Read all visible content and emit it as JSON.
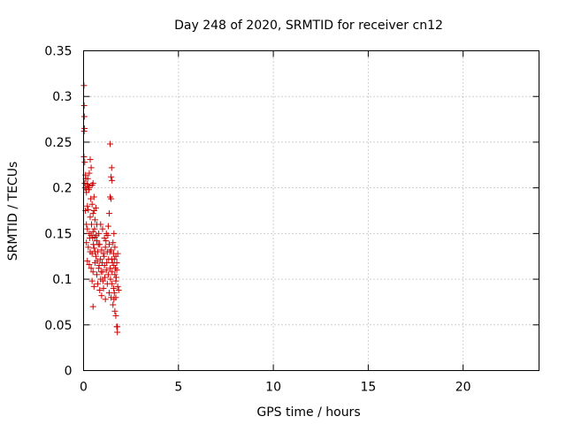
{
  "chart_data": {
    "type": "scatter",
    "title": "Day 248 of 2020, SRMTID for receiver cn12",
    "xlabel": "GPS time / hours",
    "ylabel": "SRMTID / TECUs",
    "xlim": [
      0,
      24
    ],
    "ylim": [
      0,
      0.35
    ],
    "xticks": [
      0,
      5,
      10,
      15,
      20
    ],
    "xtick_labels": [
      "0",
      "5",
      "10",
      "15",
      "20"
    ],
    "yticks": [
      0,
      0.05,
      0.1,
      0.15,
      0.2,
      0.25,
      0.3,
      0.35
    ],
    "ytick_labels": [
      "0",
      "0.05",
      "0.1",
      "0.15",
      "0.2",
      "0.25",
      "0.3",
      "0.35"
    ],
    "grid": true,
    "marker": "plus",
    "series": [
      {
        "name": "SRMTID",
        "color": "#cc0000",
        "points": [
          [
            0.02,
            0.312
          ],
          [
            0.03,
            0.29
          ],
          [
            0.04,
            0.278
          ],
          [
            0.05,
            0.265
          ],
          [
            0.03,
            0.262
          ],
          [
            0.02,
            0.234
          ],
          [
            0.06,
            0.228
          ],
          [
            0.1,
            0.214
          ],
          [
            0.12,
            0.21
          ],
          [
            0.06,
            0.205
          ],
          [
            0.08,
            0.2
          ],
          [
            0.15,
            0.198
          ],
          [
            0.2,
            0.204
          ],
          [
            0.25,
            0.202
          ],
          [
            0.3,
            0.2
          ],
          [
            0.35,
            0.231
          ],
          [
            0.4,
            0.222
          ],
          [
            0.3,
            0.216
          ],
          [
            0.45,
            0.203
          ],
          [
            0.5,
            0.205
          ],
          [
            0.55,
            0.19
          ],
          [
            0.2,
            0.18
          ],
          [
            0.25,
            0.176
          ],
          [
            0.35,
            0.168
          ],
          [
            0.5,
            0.172
          ],
          [
            0.6,
            0.165
          ],
          [
            0.65,
            0.178
          ],
          [
            0.7,
            0.16
          ],
          [
            0.55,
            0.175
          ],
          [
            0.45,
            0.182
          ],
          [
            0.15,
            0.16
          ],
          [
            0.2,
            0.155
          ],
          [
            0.3,
            0.15
          ],
          [
            0.4,
            0.148
          ],
          [
            0.5,
            0.152
          ],
          [
            0.6,
            0.146
          ],
          [
            0.7,
            0.142
          ],
          [
            0.8,
            0.15
          ],
          [
            0.9,
            0.16
          ],
          [
            1.0,
            0.155
          ],
          [
            1.1,
            0.145
          ],
          [
            1.2,
            0.15
          ],
          [
            1.3,
            0.158
          ],
          [
            1.35,
            0.172
          ],
          [
            1.4,
            0.19
          ],
          [
            1.45,
            0.212
          ],
          [
            1.5,
            0.208
          ],
          [
            1.48,
            0.222
          ],
          [
            1.4,
            0.248
          ],
          [
            1.45,
            0.188
          ],
          [
            0.15,
            0.14
          ],
          [
            0.25,
            0.135
          ],
          [
            0.35,
            0.13
          ],
          [
            0.45,
            0.128
          ],
          [
            0.55,
            0.134
          ],
          [
            0.65,
            0.125
          ],
          [
            0.75,
            0.13
          ],
          [
            0.85,
            0.138
          ],
          [
            0.95,
            0.132
          ],
          [
            1.05,
            0.128
          ],
          [
            1.15,
            0.135
          ],
          [
            1.25,
            0.13
          ],
          [
            1.35,
            0.138
          ],
          [
            1.45,
            0.132
          ],
          [
            1.55,
            0.14
          ],
          [
            1.6,
            0.15
          ],
          [
            1.65,
            0.135
          ],
          [
            1.7,
            0.125
          ],
          [
            1.75,
            0.118
          ],
          [
            1.8,
            0.128
          ],
          [
            0.2,
            0.12
          ],
          [
            0.3,
            0.116
          ],
          [
            0.4,
            0.112
          ],
          [
            0.5,
            0.108
          ],
          [
            0.6,
            0.118
          ],
          [
            0.7,
            0.105
          ],
          [
            0.8,
            0.112
          ],
          [
            0.9,
            0.1
          ],
          [
            1.0,
            0.108
          ],
          [
            1.1,
            0.115
          ],
          [
            1.2,
            0.11
          ],
          [
            1.3,
            0.105
          ],
          [
            1.4,
            0.112
          ],
          [
            1.5,
            0.108
          ],
          [
            1.6,
            0.115
          ],
          [
            1.65,
            0.105
          ],
          [
            1.7,
            0.098
          ],
          [
            1.75,
            0.11
          ],
          [
            1.8,
            0.092
          ],
          [
            1.85,
            0.088
          ],
          [
            0.45,
            0.098
          ],
          [
            0.55,
            0.092
          ],
          [
            0.75,
            0.095
          ],
          [
            0.85,
            0.088
          ],
          [
            0.95,
            0.082
          ],
          [
            1.05,
            0.09
          ],
          [
            1.15,
            0.078
          ],
          [
            1.25,
            0.095
          ],
          [
            1.35,
            0.085
          ],
          [
            1.45,
            0.08
          ],
          [
            1.55,
            0.072
          ],
          [
            1.6,
            0.078
          ],
          [
            1.65,
            0.065
          ],
          [
            1.7,
            0.06
          ],
          [
            1.75,
            0.048
          ],
          [
            1.78,
            0.042
          ],
          [
            0.5,
            0.07
          ],
          [
            1.5,
            0.095
          ],
          [
            1.58,
            0.09
          ],
          [
            1.62,
            0.085
          ],
          [
            0.1,
            0.175
          ],
          [
            0.15,
            0.195
          ],
          [
            0.22,
            0.21
          ],
          [
            0.28,
            0.198
          ],
          [
            0.38,
            0.188
          ],
          [
            0.42,
            0.16
          ],
          [
            0.48,
            0.145
          ],
          [
            0.58,
            0.155
          ],
          [
            0.68,
            0.148
          ],
          [
            0.78,
            0.138
          ],
          [
            0.88,
            0.122
          ],
          [
            0.98,
            0.118
          ],
          [
            1.08,
            0.125
          ],
          [
            1.18,
            0.142
          ],
          [
            1.28,
            0.148
          ],
          [
            1.38,
            0.13
          ],
          [
            1.48,
            0.122
          ],
          [
            1.58,
            0.128
          ],
          [
            1.68,
            0.112
          ],
          [
            1.72,
            0.102
          ],
          [
            0.32,
            0.145
          ],
          [
            0.52,
            0.138
          ],
          [
            0.62,
            0.13
          ],
          [
            0.72,
            0.12
          ],
          [
            0.82,
            0.115
          ],
          [
            0.92,
            0.108
          ],
          [
            1.02,
            0.098
          ],
          [
            1.12,
            0.102
          ],
          [
            1.22,
            0.118
          ],
          [
            1.32,
            0.122
          ],
          [
            1.42,
            0.1
          ],
          [
            1.52,
            0.118
          ],
          [
            1.62,
            0.122
          ],
          [
            1.7,
            0.08
          ],
          [
            1.78,
            0.048
          ]
        ]
      }
    ]
  }
}
